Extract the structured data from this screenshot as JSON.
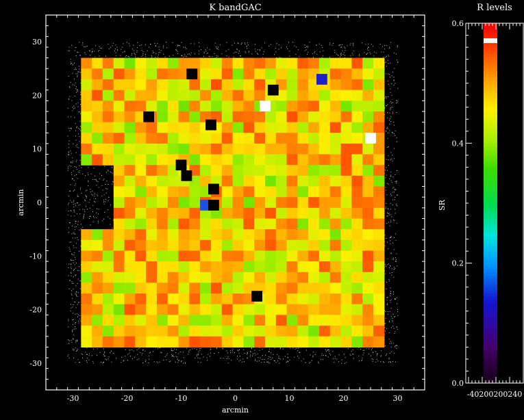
{
  "chart_data": [
    {
      "type": "heatmap",
      "title": "K bandGAC",
      "xlabel": "arcmin",
      "ylabel": "arcmin",
      "xlim": [
        -35,
        35
      ],
      "ylim": [
        -35,
        35
      ],
      "xticks": [
        "-30",
        "-20",
        "-10",
        "0",
        "10",
        "20",
        "30"
      ],
      "xtick_values": [
        -30,
        -20,
        -10,
        0,
        10,
        20,
        30
      ],
      "yticks": [
        "30",
        "20",
        "10",
        "0",
        "-10",
        "-20",
        "-30"
      ],
      "ytick_values": [
        30,
        20,
        10,
        0,
        -10,
        -20,
        -30
      ],
      "grid_extent_arcmin": {
        "x": [
          -28.5,
          27
        ],
        "y": [
          -27,
          27
        ]
      },
      "cell_size_arcmin": 2,
      "noise_border_arcmin": {
        "x": [
          -31,
          30
        ],
        "y": [
          -30,
          30
        ]
      },
      "colormap": "rainbow",
      "value_range": [
        0.0,
        0.6
      ],
      "typical_range": [
        0.38,
        0.55
      ],
      "outliers": [
        {
          "x": -8,
          "y": 24,
          "value": 0.0,
          "color": "#000000"
        },
        {
          "x": 7,
          "y": 21,
          "value": 0.0,
          "color": "#000000"
        },
        {
          "x": 16,
          "y": 23,
          "value": 0.15,
          "color": "#2020c8"
        },
        {
          "x": 5.5,
          "y": 18,
          "value": 0.6,
          "color": "#ffffff"
        },
        {
          "x": -16,
          "y": 16,
          "value": 0.0,
          "color": "#000000"
        },
        {
          "x": 25,
          "y": 12,
          "value": 0.6,
          "color": "#ffffff"
        },
        {
          "x": -4.5,
          "y": 14.5,
          "value": 0.0,
          "color": "#000000"
        },
        {
          "x": -10,
          "y": 7,
          "value": 0.0,
          "color": "#000000"
        },
        {
          "x": -9,
          "y": 5,
          "value": 0.0,
          "color": "#000000"
        },
        {
          "x": -4,
          "y": 2.5,
          "value": 0.0,
          "color": "#000000"
        },
        {
          "x": -5.5,
          "y": -0.5,
          "value": 0.12,
          "color": "#2050e0"
        },
        {
          "x": -4,
          "y": -0.5,
          "value": 0.0,
          "color": "#000000"
        },
        {
          "x": 4,
          "y": -17.5,
          "value": 0.0,
          "color": "#000000"
        }
      ]
    },
    {
      "type": "heatmap",
      "title": "R levels",
      "ylabel": "SR",
      "ylim": [
        0.0,
        0.6
      ],
      "yticks": [
        "0.0",
        "0.2",
        "0.4",
        "0.6"
      ],
      "ytick_values": [
        0.0,
        0.2,
        0.4,
        0.6
      ],
      "bottom_tick_text": "-40200200240",
      "colormap": "rainbow"
    }
  ]
}
